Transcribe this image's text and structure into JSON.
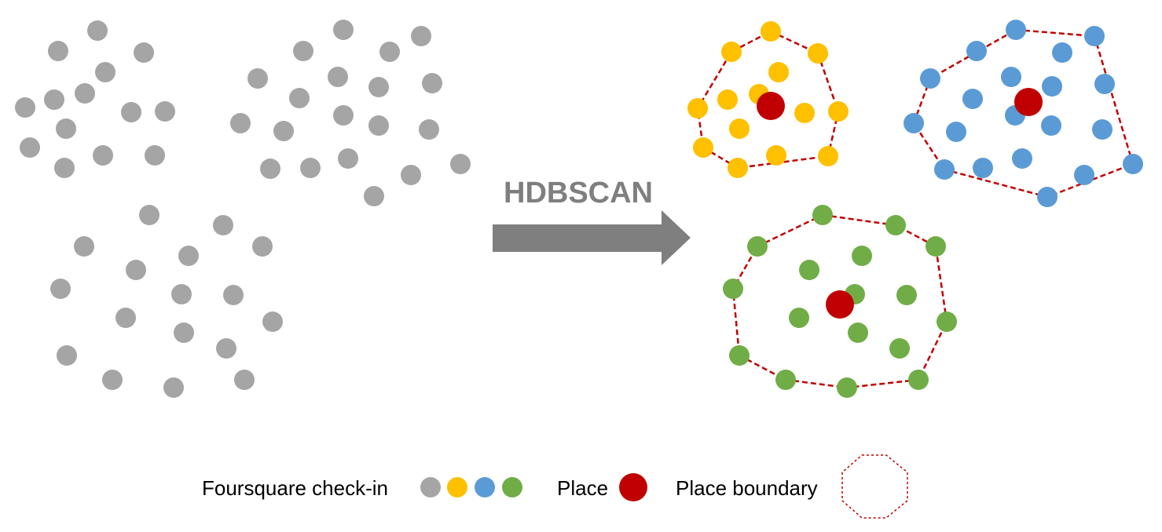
{
  "method": {
    "label": "HDBSCAN",
    "label_color": "#7f7f7f",
    "arrow_color": "#7f7f7f"
  },
  "colors": {
    "checkin_gray": "#a5a5a5",
    "checkin_yellow": "#ffc000",
    "checkin_blue": "#5b9bd5",
    "checkin_green": "#70ad47",
    "place": "#c00000",
    "boundary": "#c00000"
  },
  "legend": {
    "checkin_label": "Foursquare check-in",
    "checkin_swatches": [
      "checkin_gray",
      "checkin_yellow",
      "checkin_blue",
      "checkin_green"
    ],
    "place_label": "Place",
    "boundary_label": "Place boundary"
  }
}
